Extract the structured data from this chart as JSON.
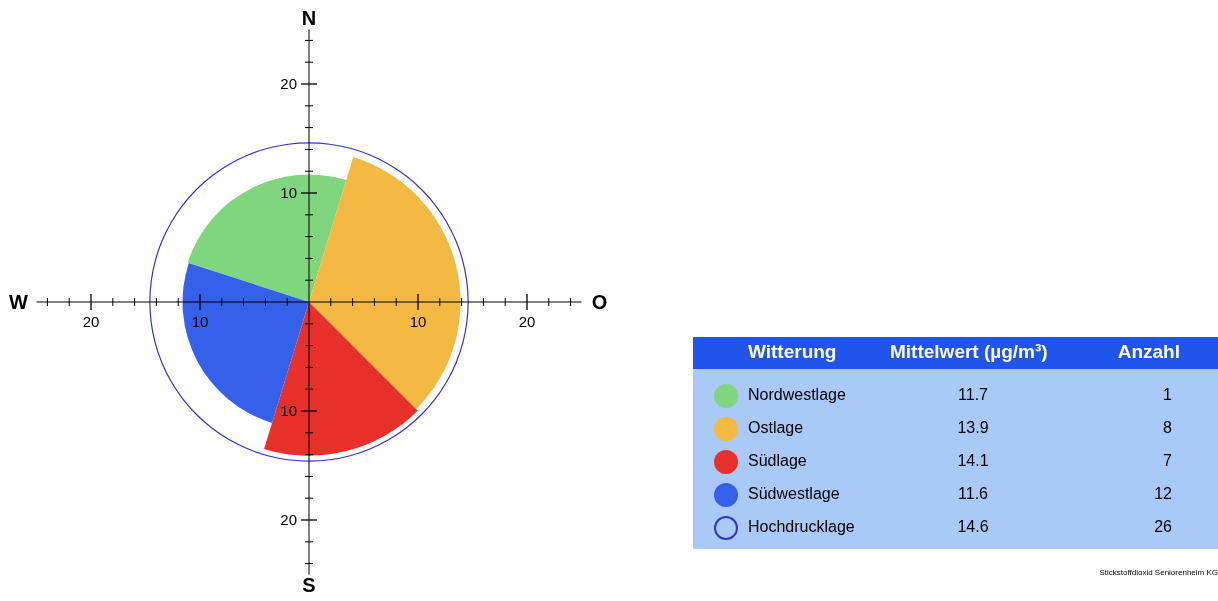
{
  "chart_data": {
    "type": "other",
    "legend_title": "Witterung",
    "categories": [
      "Nordwestlage",
      "Ostlage",
      "Südlage",
      "Südwestlage",
      "Hochdrucklage"
    ],
    "colors": [
      "#7fd67f",
      "#f4b942",
      "#e8302a",
      "#3560ea",
      "#3333cc"
    ],
    "series": [
      {
        "name": "Mittelwert (µg/m³)",
        "values": [
          11.7,
          13.9,
          14.1,
          11.6,
          14.6
        ]
      },
      {
        "name": "Anzahl",
        "values": [
          1,
          8,
          7,
          12,
          26
        ]
      }
    ],
    "data_labels": true,
    "annotations": [
      "N",
      "O",
      "S",
      "W",
      "Stickstoffdioxid Seniorenheim KG",
      "20",
      "10",
      "20",
      "10",
      "10",
      "20",
      "10",
      "20"
    ]
  }
}
